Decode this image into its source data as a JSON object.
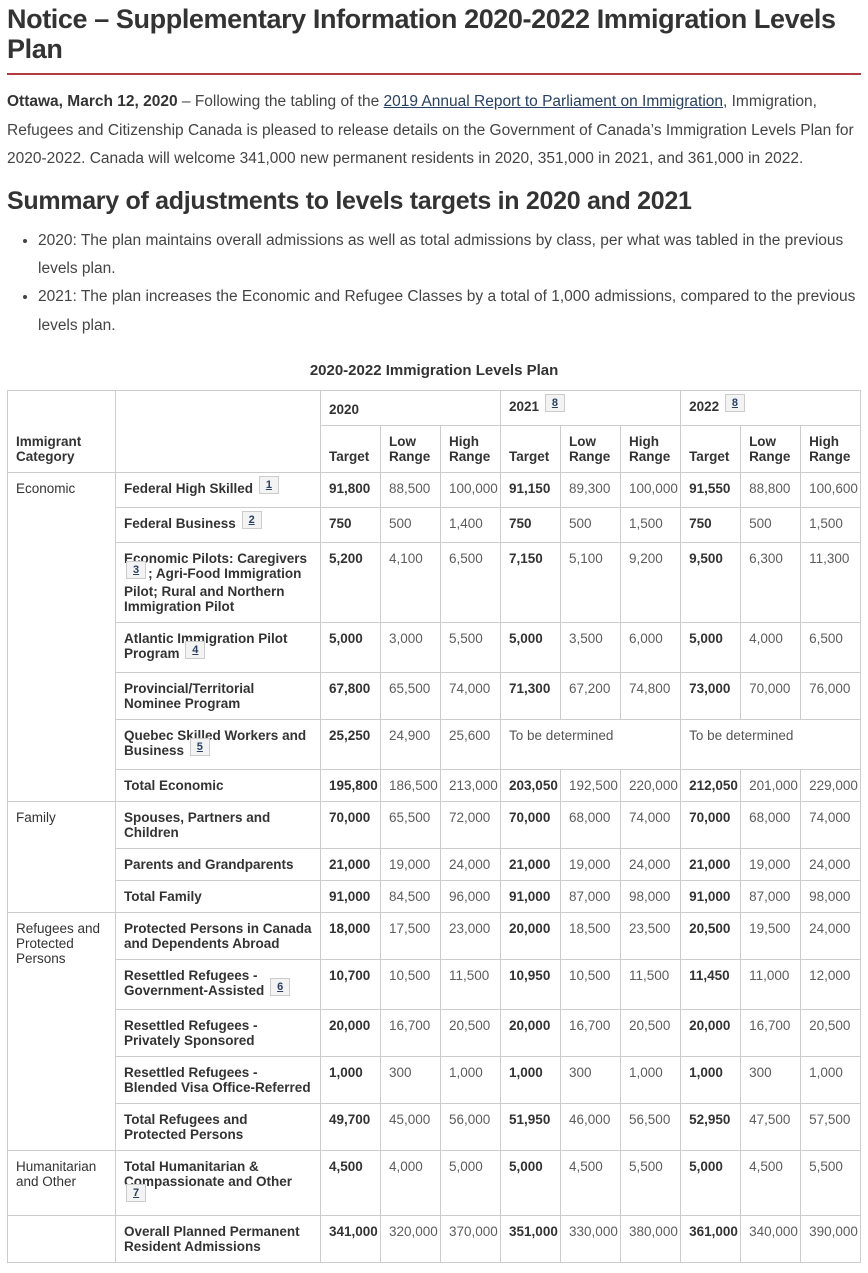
{
  "page": {
    "title": "Notice – Supplementary Information 2020-2022 Immigration Levels Plan",
    "intro": {
      "date_label": "Ottawa, March 12, 2020",
      "dash_and_lead": " – Following the tabling of the ",
      "link_text": "2019 Annual Report to Parliament on Immigration",
      "after_link": ", Immigration, Refugees and Citizenship Canada is pleased to release details on the Government of Canada’s Immigration Levels Plan for 2020-2022. Canada will welcome 341,000 new permanent residents in 2020, 351,000 in 2021, and 361,000 in 2022."
    },
    "summary": {
      "heading": "Summary of adjustments to levels targets in 2020 and 2021",
      "bullets": [
        "2020: The plan maintains overall admissions as well as total admissions by class, per what was tabled in the previous levels plan.",
        "2021: The plan increases the Economic and Refugee Classes by a total of 1,000 admissions, compared to the previous levels plan."
      ]
    }
  },
  "table": {
    "caption": "2020-2022 Immigration Levels Plan",
    "header": {
      "immigrant_category": "Immigrant Category",
      "years": [
        {
          "label": "2020",
          "footnote": null
        },
        {
          "label": "2021",
          "footnote": "8"
        },
        {
          "label": "2022",
          "footnote": "8"
        }
      ],
      "sub": [
        "Target",
        "Low Range",
        "High Range"
      ]
    },
    "rows": [
      {
        "category": "Economic",
        "category_rowspan": 7,
        "label": "Federal High Skilled",
        "footnote": "1",
        "label_after": "",
        "values": [
          "91,800",
          "88,500",
          "100,000",
          "91,150",
          "89,300",
          "100,000",
          "91,550",
          "88,800",
          "100,600"
        ]
      },
      {
        "category": null,
        "label": "Federal Business",
        "footnote": "2",
        "label_after": "",
        "values": [
          "750",
          "500",
          "1,400",
          "750",
          "500",
          "1,500",
          "750",
          "500",
          "1,500"
        ]
      },
      {
        "category": null,
        "label": "Economic Pilots: Caregivers",
        "footnote": "3",
        "label_after": "; Agri-Food Immigration Pilot; Rural and Northern Immigration Pilot",
        "values": [
          "5,200",
          "4,100",
          "6,500",
          "7,150",
          "5,100",
          "9,200",
          "9,500",
          "6,300",
          "11,300"
        ]
      },
      {
        "category": null,
        "label": "Atlantic Immigration Pilot Program",
        "footnote": "4",
        "label_after": "",
        "values": [
          "5,000",
          "3,000",
          "5,500",
          "5,000",
          "3,500",
          "6,000",
          "5,000",
          "4,000",
          "6,500"
        ]
      },
      {
        "category": null,
        "label": "Provincial/Territorial Nominee Program",
        "footnote": null,
        "label_after": "",
        "values": [
          "67,800",
          "65,500",
          "74,000",
          "71,300",
          "67,200",
          "74,800",
          "73,000",
          "70,000",
          "76,000"
        ]
      },
      {
        "category": null,
        "label": "Quebec Skilled Workers and Business",
        "footnote": "5",
        "label_after": "",
        "values": [
          "25,250",
          "24,900",
          "25,600",
          {
            "colspan": 3,
            "text": "To be determined"
          },
          {
            "colspan": 3,
            "text": "To be determined"
          }
        ]
      },
      {
        "category": null,
        "label": "Total Economic",
        "footnote": null,
        "label_after": "",
        "values": [
          "195,800",
          "186,500",
          "213,000",
          "203,050",
          "192,500",
          "220,000",
          "212,050",
          "201,000",
          "229,000"
        ]
      },
      {
        "category": "Family",
        "category_rowspan": 3,
        "label": "Spouses, Partners and Children",
        "footnote": null,
        "label_after": "",
        "values": [
          "70,000",
          "65,500",
          "72,000",
          "70,000",
          "68,000",
          "74,000",
          "70,000",
          "68,000",
          "74,000"
        ]
      },
      {
        "category": null,
        "label": "Parents and Grandparents",
        "footnote": null,
        "label_after": "",
        "values": [
          "21,000",
          "19,000",
          "24,000",
          "21,000",
          "19,000",
          "24,000",
          "21,000",
          "19,000",
          "24,000"
        ]
      },
      {
        "category": null,
        "label": "Total Family",
        "footnote": null,
        "label_after": "",
        "values": [
          "91,000",
          "84,500",
          "96,000",
          "91,000",
          "87,000",
          "98,000",
          "91,000",
          "87,000",
          "98,000"
        ]
      },
      {
        "category": "Refugees and Protected Persons",
        "category_rowspan": 5,
        "label": "Protected Persons in Canada and Dependents Abroad",
        "footnote": null,
        "label_after": "",
        "values": [
          "18,000",
          "17,500",
          "23,000",
          "20,000",
          "18,500",
          "23,500",
          "20,500",
          "19,500",
          "24,000"
        ]
      },
      {
        "category": null,
        "label": "Resettled Refugees - Government-Assisted",
        "footnote": "6",
        "label_after": "",
        "values": [
          "10,700",
          "10,500",
          "11,500",
          "10,950",
          "10,500",
          "11,500",
          "11,450",
          "11,000",
          "12,000"
        ]
      },
      {
        "category": null,
        "label": "Resettled Refugees - Privately Sponsored",
        "footnote": null,
        "label_after": "",
        "values": [
          "20,000",
          "16,700",
          "20,500",
          "20,000",
          "16,700",
          "20,500",
          "20,000",
          "16,700",
          "20,500"
        ]
      },
      {
        "category": null,
        "label": "Resettled Refugees - Blended Visa Office-Referred",
        "footnote": null,
        "label_after": "",
        "values": [
          "1,000",
          "300",
          "1,000",
          "1,000",
          "300",
          "1,000",
          "1,000",
          "300",
          "1,000"
        ]
      },
      {
        "category": null,
        "label": "Total Refugees and Protected Persons",
        "footnote": null,
        "label_after": "",
        "values": [
          "49,700",
          "45,000",
          "56,000",
          "51,950",
          "46,000",
          "56,500",
          "52,950",
          "47,500",
          "57,500"
        ]
      },
      {
        "category": "Humanitarian and Other",
        "category_rowspan": 1,
        "label": "Total Humanitarian & Compassionate and Other",
        "footnote": "7",
        "label_after": "",
        "values": [
          "4,500",
          "4,000",
          "5,000",
          "5,000",
          "4,500",
          "5,500",
          "5,000",
          "4,500",
          "5,500"
        ]
      },
      {
        "category": "",
        "label": "Overall Planned Permanent Resident Admissions",
        "footnote": null,
        "label_after": "",
        "values": [
          "341,000",
          "320,000",
          "370,000",
          "351,000",
          "330,000",
          "380,000",
          "361,000",
          "340,000",
          "390,000"
        ]
      }
    ]
  }
}
